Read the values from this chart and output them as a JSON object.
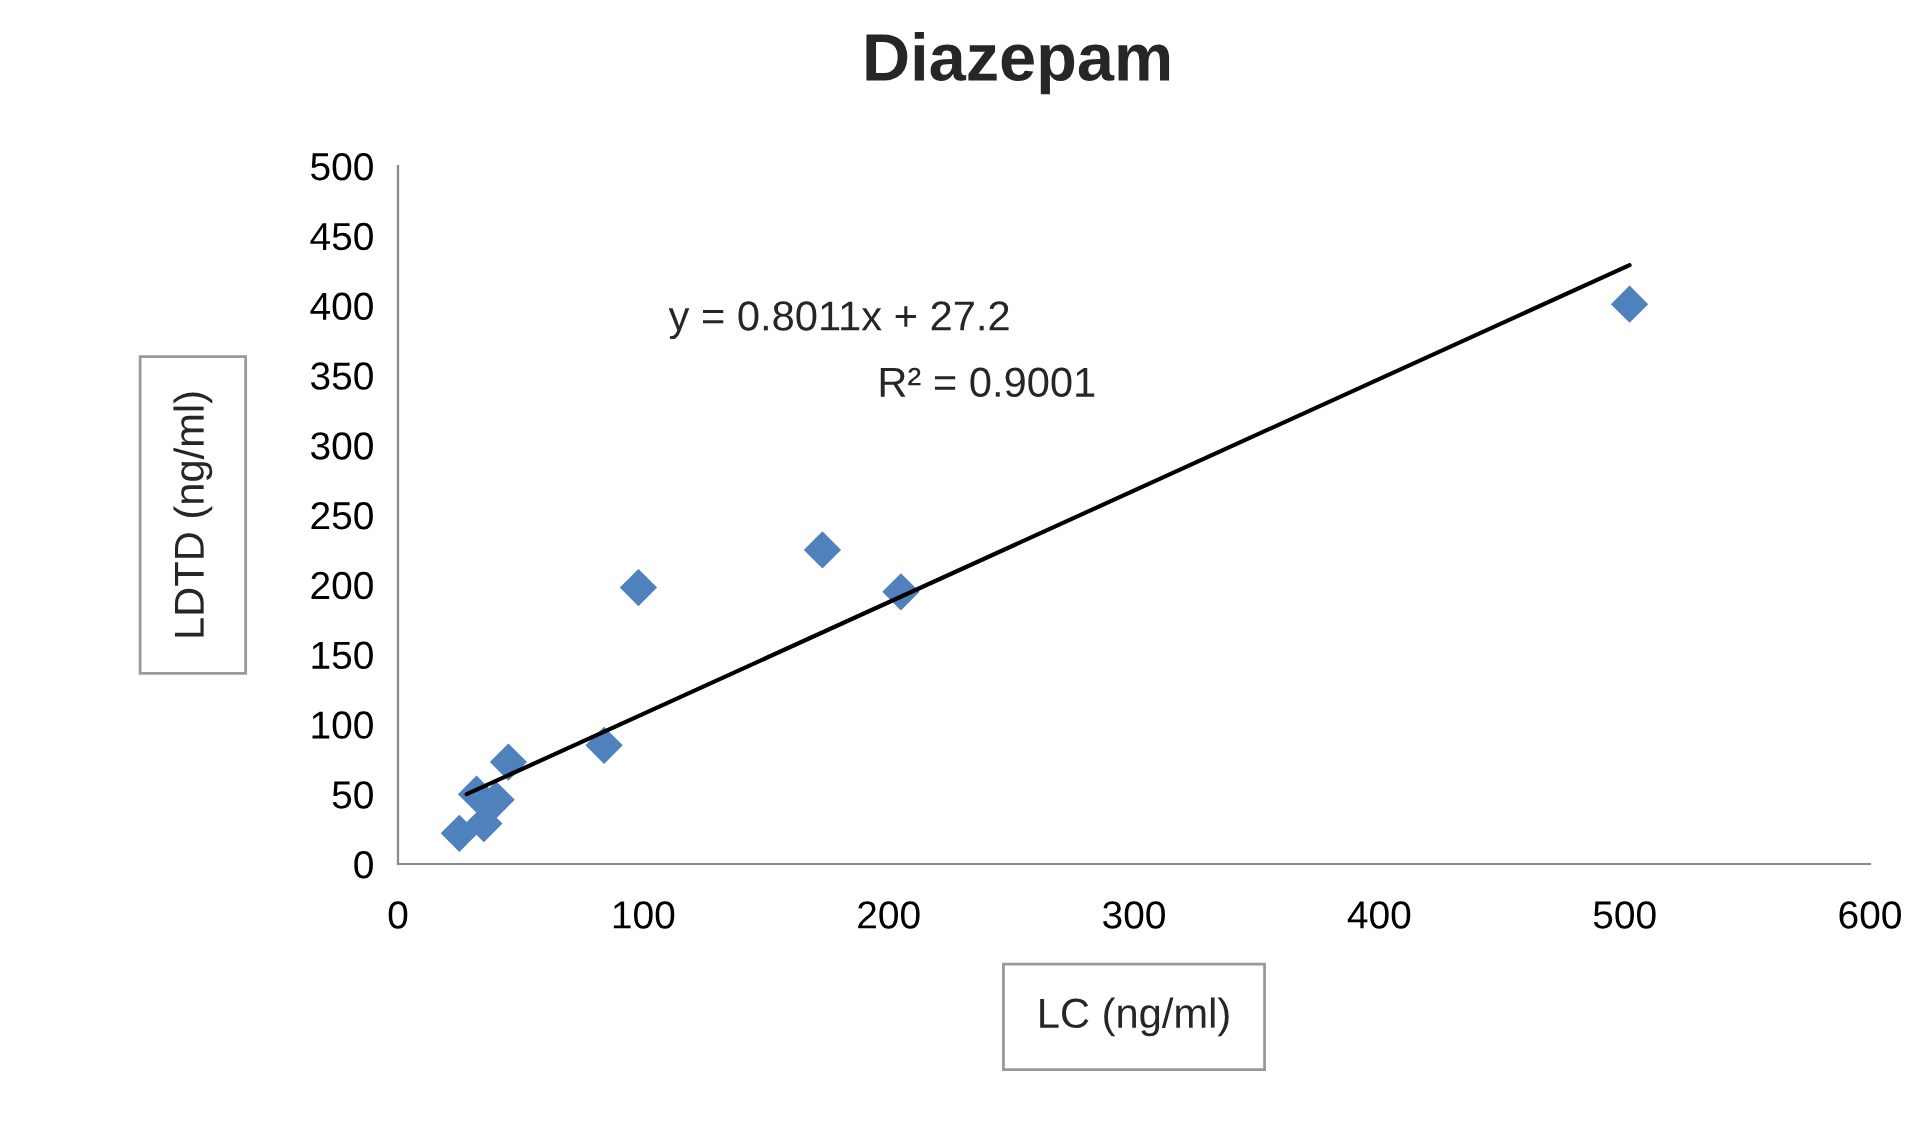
{
  "chart_data": {
    "type": "scatter",
    "title": "Diazepam",
    "xlabel": "LC (ng/ml)",
    "ylabel": "LDTD (ng/ml)",
    "xlim": [
      0,
      600
    ],
    "xticks": [
      0,
      100,
      200,
      300,
      400,
      500,
      600
    ],
    "ylim": [
      0,
      500
    ],
    "yticks": [
      0,
      50,
      100,
      150,
      200,
      250,
      300,
      350,
      400,
      450,
      500
    ],
    "grid": false,
    "legend": false,
    "series": [
      {
        "color": "#4f81bd",
        "marker": "diamond",
        "x": [
          502,
          98,
          173,
          205,
          84,
          45,
          32,
          28,
          25,
          40,
          35
        ],
        "values": [
          401,
          198,
          225,
          195,
          85,
          73,
          50,
          null,
          22,
          46,
          29
        ]
      },
      {
        "type": "line",
        "marker": "none",
        "color": "#000000",
        "line_style": "solid",
        "x": [
          28,
          502
        ],
        "values": [
          50,
          429
        ]
      }
    ],
    "annotations": [
      "y = 0.8011x + 27.2",
      "R² = 0.9001"
    ]
  }
}
